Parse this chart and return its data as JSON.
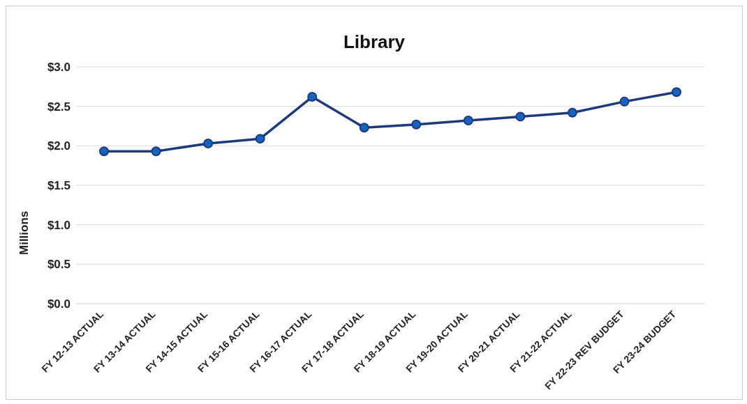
{
  "chart_data": {
    "type": "line",
    "title": "Library",
    "ylabel": "Millions",
    "categories": [
      "FY 12-13 ACTUAL",
      "FY 13-14 ACTUAL",
      "FY 14-15 ACTUAL",
      "FY 15-16 ACTUAL",
      "FY 16-17 ACTUAL",
      "FY 17-18 ACTUAL",
      "FY 18-19 ACTUAL",
      "FY 19-20 ACTUAL",
      "FY 20-21 ACTUAL",
      "FY 21-22 ACTUAL",
      "FY 22-23 REV BUDGET",
      "FY 23-24 BUDGET"
    ],
    "series": [
      {
        "color": "#1f3a7a",
        "values": [
          1.93,
          1.93,
          2.03,
          2.09,
          2.62,
          2.23,
          2.27,
          2.32,
          2.37,
          2.42,
          2.56,
          2.68
        ]
      }
    ],
    "ylim": [
      0,
      3
    ],
    "yticks": [
      {
        "value": 0,
        "label": "$0.0"
      },
      {
        "value": 0.5,
        "label": "$0.5"
      },
      {
        "value": 1,
        "label": "$1.0"
      },
      {
        "value": 1.5,
        "label": "$1.5"
      },
      {
        "value": 2,
        "label": "$2.0"
      },
      {
        "value": 2.5,
        "label": "$2.5"
      },
      {
        "value": 3,
        "label": "$3.0"
      }
    ],
    "grid": "y",
    "marker": "circle",
    "line_style": "solid"
  }
}
